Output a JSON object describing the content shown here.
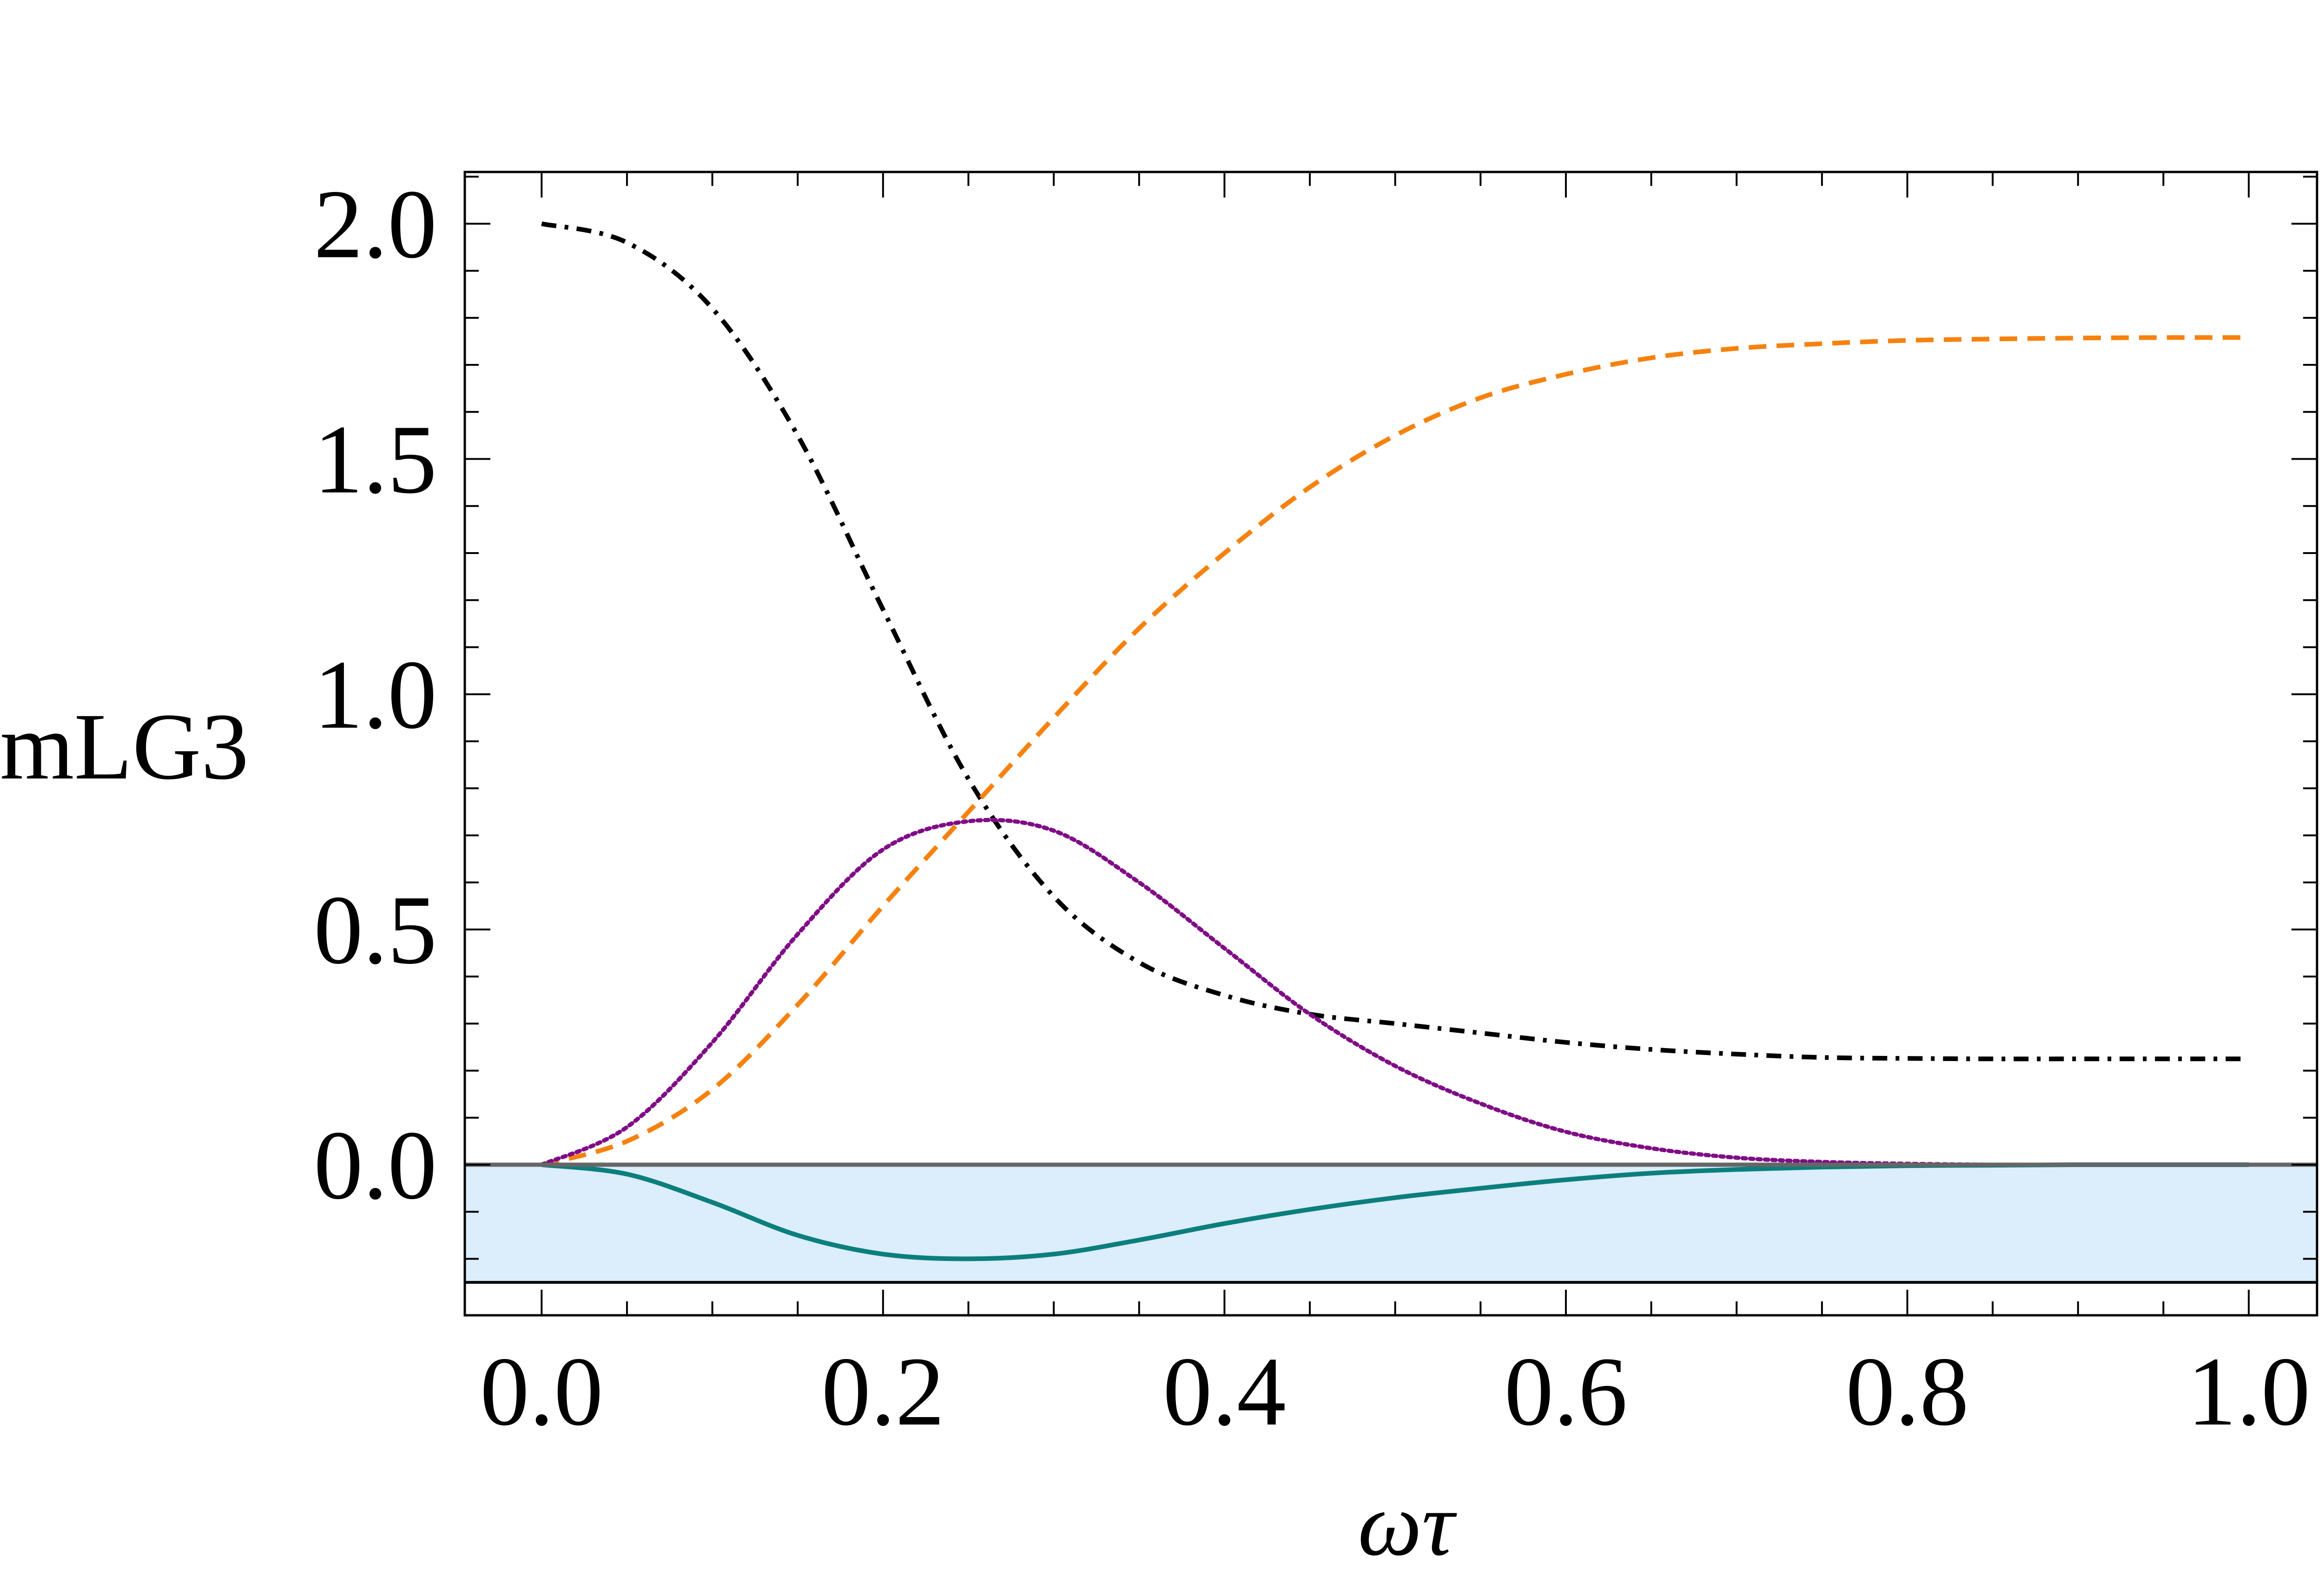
{
  "chart_data": {
    "type": "line",
    "title": "",
    "xlabel": "ωτ",
    "ylabel": "mLG3",
    "xlim": [
      -0.045,
      1.04
    ],
    "ylim": [
      -0.32,
      2.11
    ],
    "xticks": [
      0.0,
      0.2,
      0.4,
      0.6,
      0.8,
      1.0
    ],
    "xtick_labels": [
      "0.0",
      "0.2",
      "0.4",
      "0.6",
      "0.8",
      "1.0"
    ],
    "yticks": [
      0.0,
      0.5,
      1.0,
      1.5,
      2.0
    ],
    "ytick_labels": [
      "0.0",
      "0.5",
      "1.0",
      "1.5",
      "2.0"
    ],
    "grid": false,
    "shaded_region": {
      "y_from": -0.25,
      "y_to": 0.0,
      "color": "#dcedfc"
    },
    "reference_lines": [
      {
        "name": "zero-line",
        "y": 0.0,
        "color": "#666666"
      },
      {
        "name": "lower-bound-line",
        "y": -0.25,
        "color": "#000000"
      }
    ],
    "x": [
      0.0,
      0.05,
      0.1,
      0.15,
      0.2,
      0.25,
      0.3,
      0.35,
      0.4,
      0.45,
      0.5,
      0.55,
      0.6,
      0.65,
      0.7,
      0.75,
      0.8,
      0.85,
      0.9,
      0.95,
      1.0
    ],
    "series": [
      {
        "name": "dash-dot-black",
        "style": "dashdot",
        "color": "#000000",
        "values": [
          2.0,
          1.96,
          1.82,
          1.55,
          1.18,
          0.82,
          0.57,
          0.43,
          0.36,
          0.32,
          0.3,
          0.28,
          0.26,
          0.245,
          0.235,
          0.228,
          0.226,
          0.225,
          0.225,
          0.225,
          0.225
        ]
      },
      {
        "name": "dashed-orange",
        "style": "dashed",
        "color": "#f5820f",
        "values": [
          0.0,
          0.05,
          0.16,
          0.34,
          0.55,
          0.75,
          0.95,
          1.14,
          1.3,
          1.44,
          1.55,
          1.63,
          1.68,
          1.715,
          1.735,
          1.745,
          1.752,
          1.755,
          1.757,
          1.758,
          1.758
        ]
      },
      {
        "name": "dotted-purple",
        "style": "dotted",
        "color": "#800c86",
        "values": [
          0.0,
          0.08,
          0.26,
          0.49,
          0.67,
          0.73,
          0.71,
          0.6,
          0.46,
          0.32,
          0.21,
          0.13,
          0.07,
          0.035,
          0.015,
          0.006,
          0.002,
          0.0,
          0.0,
          0.0,
          0.0
        ]
      },
      {
        "name": "solid-teal",
        "style": "solid",
        "color": "#0b7f7d",
        "values": [
          0.0,
          -0.02,
          -0.08,
          -0.15,
          -0.19,
          -0.2,
          -0.19,
          -0.16,
          -0.125,
          -0.095,
          -0.07,
          -0.05,
          -0.032,
          -0.018,
          -0.01,
          -0.005,
          -0.002,
          -0.001,
          0.0,
          0.0,
          0.0
        ]
      }
    ]
  }
}
